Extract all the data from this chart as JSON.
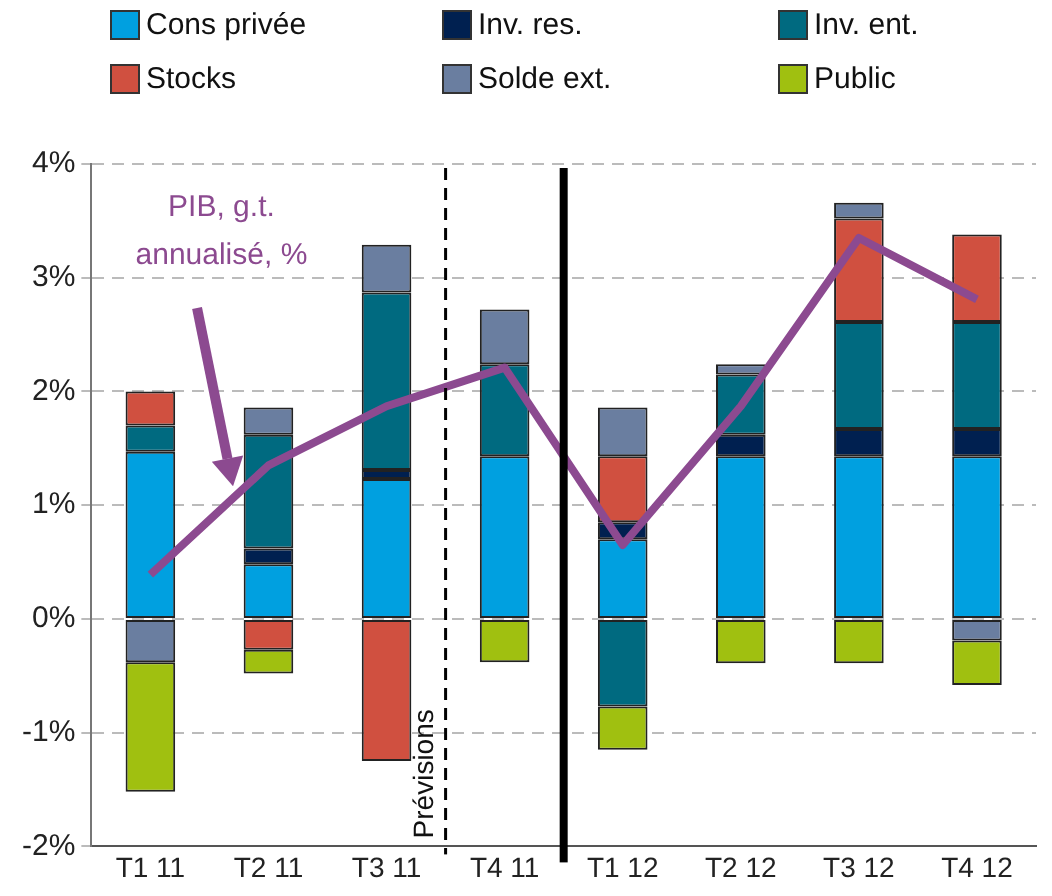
{
  "chart_data": {
    "type": "bar",
    "stacked": true,
    "categories": [
      "T1 11",
      "T2 11",
      "T3 11",
      "T4 11",
      "T1 12",
      "T2 12",
      "T3 12",
      "T4 12"
    ],
    "series": [
      {
        "name": "Cons privée",
        "color": "#00a0e0",
        "values": [
          1.47,
          0.48,
          1.23,
          1.43,
          0.7,
          1.43,
          1.43,
          1.43
        ]
      },
      {
        "name": "Inv. res.",
        "color": "#002050",
        "values": [
          null,
          0.14,
          0.08,
          null,
          0.15,
          0.19,
          0.24,
          0.24
        ]
      },
      {
        "name": "Inv. ent.",
        "color": "#006a80",
        "values": [
          0.23,
          1.0,
          1.56,
          0.81,
          -0.77,
          0.53,
          0.94,
          0.94
        ]
      },
      {
        "name": "Stocks",
        "color": "#d05040",
        "values": [
          0.3,
          -0.27,
          -1.25,
          null,
          0.58,
          null,
          0.91,
          0.77
        ]
      },
      {
        "name": "Solde ext.",
        "color": "#6a7ea0",
        "values": [
          -0.38,
          0.24,
          0.42,
          0.48,
          0.43,
          0.09,
          0.14,
          -0.19
        ]
      },
      {
        "name": "Public",
        "color": "#a0c010",
        "values": [
          -1.14,
          -0.21,
          null,
          -0.38,
          -0.38,
          -0.39,
          -0.39,
          -0.39
        ]
      },
      {
        "name": "PIB, g.t. annualisé, %",
        "type": "line",
        "color": "#8c4a90",
        "values": [
          0.39,
          1.35,
          1.87,
          2.21,
          0.65,
          1.87,
          3.35,
          2.81
        ]
      }
    ],
    "ylim": [
      -2,
      4
    ],
    "yticks": [
      {
        "value": -2,
        "label": "-2%"
      },
      {
        "value": -1,
        "label": "-1%"
      },
      {
        "value": 0,
        "label": "0%"
      },
      {
        "value": 1,
        "label": "1%"
      },
      {
        "value": 2,
        "label": "2%"
      },
      {
        "value": 3,
        "label": "3%"
      },
      {
        "value": 4,
        "label": "4%"
      }
    ],
    "annotations": [
      "Prévisions"
    ],
    "grid": "y",
    "legend": "top",
    "marker": "none"
  }
}
